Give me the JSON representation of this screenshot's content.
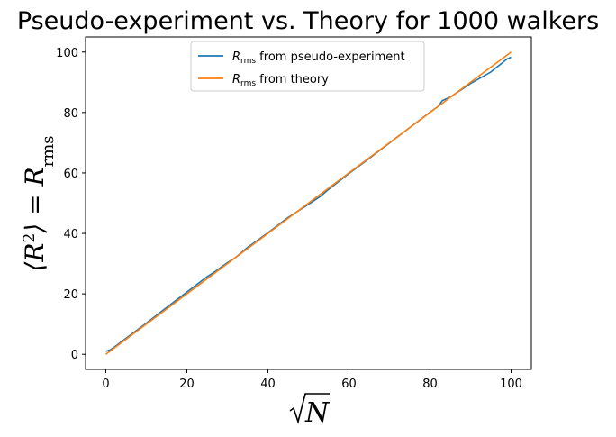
{
  "chart_data": {
    "type": "line",
    "title": "Pseudo-experiment vs. Theory for 1000 walkers",
    "xlabel": "√N",
    "ylabel": "⟨R²⟩ = R_rms",
    "xlim": [
      -5,
      105
    ],
    "ylim": [
      -5,
      105
    ],
    "x_ticks": [
      0,
      20,
      40,
      60,
      80,
      100
    ],
    "y_ticks": [
      0,
      20,
      40,
      60,
      80,
      100
    ],
    "legend_position": "top-center",
    "series": [
      {
        "name": "R_rms from pseudo-experiment",
        "legend_main": "R",
        "legend_sub": "rms",
        "legend_suffix": " from pseudo-experiment",
        "color": "#1f77b4",
        "x": [
          0,
          1,
          2,
          5,
          10,
          15,
          20,
          25,
          27,
          30,
          32,
          35,
          40,
          45,
          50,
          53,
          55,
          60,
          65,
          68,
          70,
          75,
          80,
          82,
          83,
          85,
          90,
          95,
          99,
          100
        ],
        "y": [
          1,
          1.4,
          2.3,
          5.3,
          10.3,
          15.5,
          20.6,
          25.7,
          27.4,
          30.3,
          32.0,
          35.4,
          40.2,
          45.3,
          49.6,
          52.3,
          54.6,
          59.8,
          64.8,
          67.9,
          69.9,
          75.0,
          80.1,
          82.0,
          83.9,
          85.1,
          89.6,
          93.4,
          97.7,
          98.3
        ]
      },
      {
        "name": "R_rms from theory",
        "legend_main": "R",
        "legend_sub": "rms",
        "legend_suffix": " from theory",
        "color": "#ff7f0e",
        "x": [
          0,
          100
        ],
        "y": [
          0,
          100
        ]
      }
    ]
  }
}
